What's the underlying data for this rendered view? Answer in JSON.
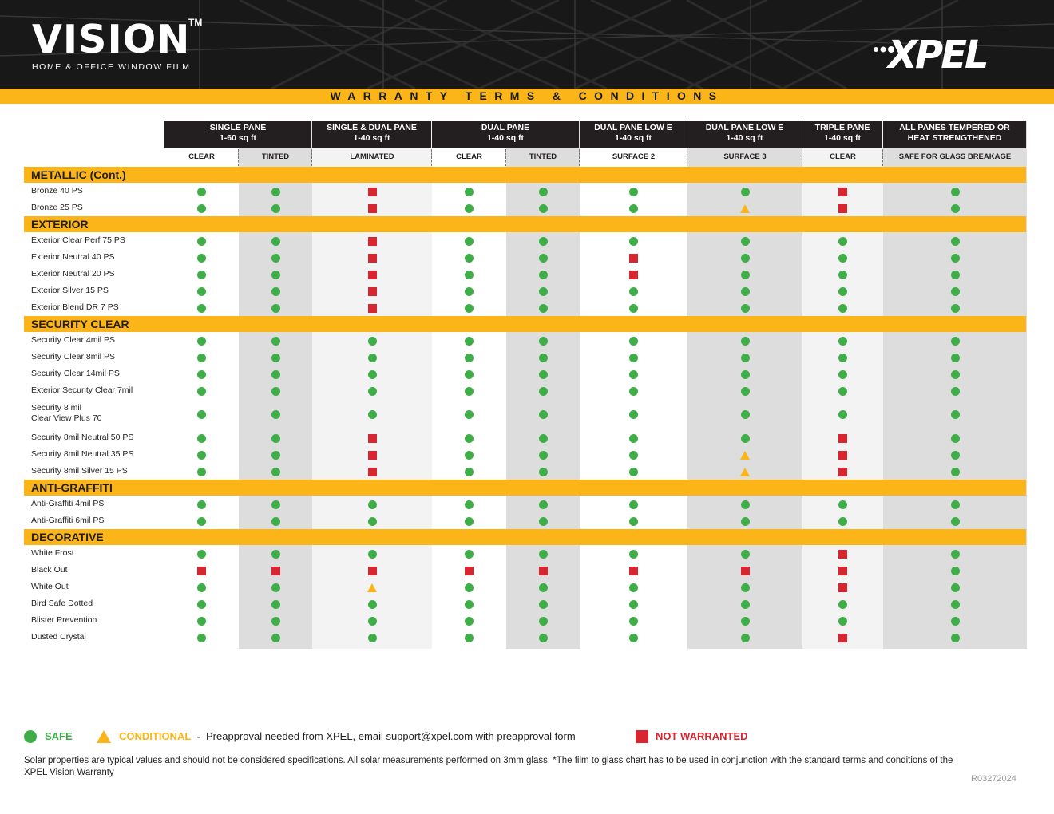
{
  "header": {
    "brand": "VISION",
    "trademark": "TM",
    "tagline": "HOME & OFFICE WINDOW FILM",
    "logo_text": "XPEL",
    "logo_icon": "xpel-dots-logo"
  },
  "title": "WARRANTY TERMS & CONDITIONS",
  "colors": {
    "accent": "#fbb519",
    "dark": "#231f20",
    "safe": "#3fae49",
    "conditional": "#fbb519",
    "not_warranted": "#d7262f"
  },
  "columns": {
    "groups": [
      {
        "line1": "SINGLE PANE",
        "line2": "1-60 sq ft"
      },
      {
        "line1": "SINGLE & DUAL PANE",
        "line2": "1-40 sq ft"
      },
      {
        "line1": "DUAL PANE",
        "line2": "1-40 sq ft"
      },
      {
        "line1": "DUAL PANE LOW E",
        "line2": "1-40 sq ft"
      },
      {
        "line1": "DUAL PANE LOW E",
        "line2": "1-40 sq ft"
      },
      {
        "line1": "TRIPLE PANE",
        "line2": "1-40 sq ft"
      },
      {
        "line1": "ALL PANES TEMPERED OR",
        "line2": "HEAT STRENGTHENED"
      }
    ],
    "subs": [
      "CLEAR",
      "TINTED",
      "LAMINATED",
      "CLEAR",
      "TINTED",
      "SURFACE 2",
      "SURFACE 3",
      "CLEAR",
      "SAFE FOR GLASS BREAKAGE"
    ]
  },
  "sections": [
    {
      "name": "METALLIC (Cont.)",
      "rows": [
        {
          "label": "Bronze 40 PS",
          "marks": [
            "S",
            "S",
            "N",
            "S",
            "S",
            "S",
            "S",
            "N",
            "S"
          ]
        },
        {
          "label": "Bronze 25 PS",
          "marks": [
            "S",
            "S",
            "N",
            "S",
            "S",
            "S",
            "C",
            "N",
            "S"
          ]
        }
      ]
    },
    {
      "name": "EXTERIOR",
      "rows": [
        {
          "label": "Exterior Clear Perf 75 PS",
          "marks": [
            "S",
            "S",
            "N",
            "S",
            "S",
            "S",
            "S",
            "S",
            "S"
          ]
        },
        {
          "label": "Exterior Neutral 40 PS",
          "marks": [
            "S",
            "S",
            "N",
            "S",
            "S",
            "N",
            "S",
            "S",
            "S"
          ]
        },
        {
          "label": "Exterior Neutral 20 PS",
          "marks": [
            "S",
            "S",
            "N",
            "S",
            "S",
            "N",
            "S",
            "S",
            "S"
          ]
        },
        {
          "label": "Exterior Silver 15 PS",
          "marks": [
            "S",
            "S",
            "N",
            "S",
            "S",
            "S",
            "S",
            "S",
            "S"
          ]
        },
        {
          "label": "Exterior Blend DR 7 PS",
          "marks": [
            "S",
            "S",
            "N",
            "S",
            "S",
            "S",
            "S",
            "S",
            "S"
          ]
        }
      ]
    },
    {
      "name": "SECURITY CLEAR",
      "rows": [
        {
          "label": "Security Clear 4mil PS",
          "marks": [
            "S",
            "S",
            "S",
            "S",
            "S",
            "S",
            "S",
            "S",
            "S"
          ]
        },
        {
          "label": "Security  Clear 8mil PS",
          "marks": [
            "S",
            "S",
            "S",
            "S",
            "S",
            "S",
            "S",
            "S",
            "S"
          ]
        },
        {
          "label": "Security Clear 14mil PS",
          "marks": [
            "S",
            "S",
            "S",
            "S",
            "S",
            "S",
            "S",
            "S",
            "S"
          ]
        },
        {
          "label": "Exterior Security Clear 7mil",
          "marks": [
            "S",
            "S",
            "S",
            "S",
            "S",
            "S",
            "S",
            "S",
            "S"
          ]
        },
        {
          "label": "Security 8 mil\nClear View Plus 70",
          "marks": [
            "S",
            "S",
            "S",
            "S",
            "S",
            "S",
            "S",
            "S",
            "S"
          ]
        },
        {
          "label": "Security 8mil Neutral 50 PS",
          "marks": [
            "S",
            "S",
            "N",
            "S",
            "S",
            "S",
            "S",
            "N",
            "S"
          ]
        },
        {
          "label": "Security 8mil Neutral 35 PS",
          "marks": [
            "S",
            "S",
            "N",
            "S",
            "S",
            "S",
            "C",
            "N",
            "S"
          ]
        },
        {
          "label": "Security 8mil Silver 15 PS",
          "marks": [
            "S",
            "S",
            "N",
            "S",
            "S",
            "S",
            "C",
            "N",
            "S"
          ]
        }
      ]
    },
    {
      "name": "ANTI-GRAFFITI",
      "rows": [
        {
          "label": "Anti-Graffiti 4mil PS",
          "marks": [
            "S",
            "S",
            "S",
            "S",
            "S",
            "S",
            "S",
            "S",
            "S"
          ]
        },
        {
          "label": "Anti-Graffiti 6mil PS",
          "marks": [
            "S",
            "S",
            "S",
            "S",
            "S",
            "S",
            "S",
            "S",
            "S"
          ]
        }
      ]
    },
    {
      "name": "DECORATIVE",
      "rows": [
        {
          "label": "White Frost",
          "marks": [
            "S",
            "S",
            "S",
            "S",
            "S",
            "S",
            "S",
            "N",
            "S"
          ]
        },
        {
          "label": "Black Out",
          "marks": [
            "N",
            "N",
            "N",
            "N",
            "N",
            "N",
            "N",
            "N",
            "S"
          ]
        },
        {
          "label": "White Out",
          "marks": [
            "S",
            "S",
            "C",
            "S",
            "S",
            "S",
            "S",
            "N",
            "S"
          ]
        },
        {
          "label": "Bird Safe Dotted",
          "marks": [
            "S",
            "S",
            "S",
            "S",
            "S",
            "S",
            "S",
            "S",
            "S"
          ]
        },
        {
          "label": "Blister Prevention",
          "marks": [
            "S",
            "S",
            "S",
            "S",
            "S",
            "S",
            "S",
            "S",
            "S"
          ]
        },
        {
          "label": "Dusted Crystal",
          "marks": [
            "S",
            "S",
            "S",
            "S",
            "S",
            "S",
            "S",
            "N",
            "S"
          ]
        }
      ]
    }
  ],
  "legend": {
    "safe": "SAFE",
    "conditional": "CONDITIONAL",
    "dash": "-",
    "conditional_note": "Preapproval needed from XPEL, email support@xpel.com with preapproval form",
    "not_warranted": "NOT WARRANTED"
  },
  "disclaimer": "Solar properties are typical values and should not be considered specifications. All solar measurements performed on 3mm glass. *The film to glass chart has to be used in conjunction with the standard terms and conditions of the XPEL Vision Warranty",
  "doc_code": "R03272024"
}
